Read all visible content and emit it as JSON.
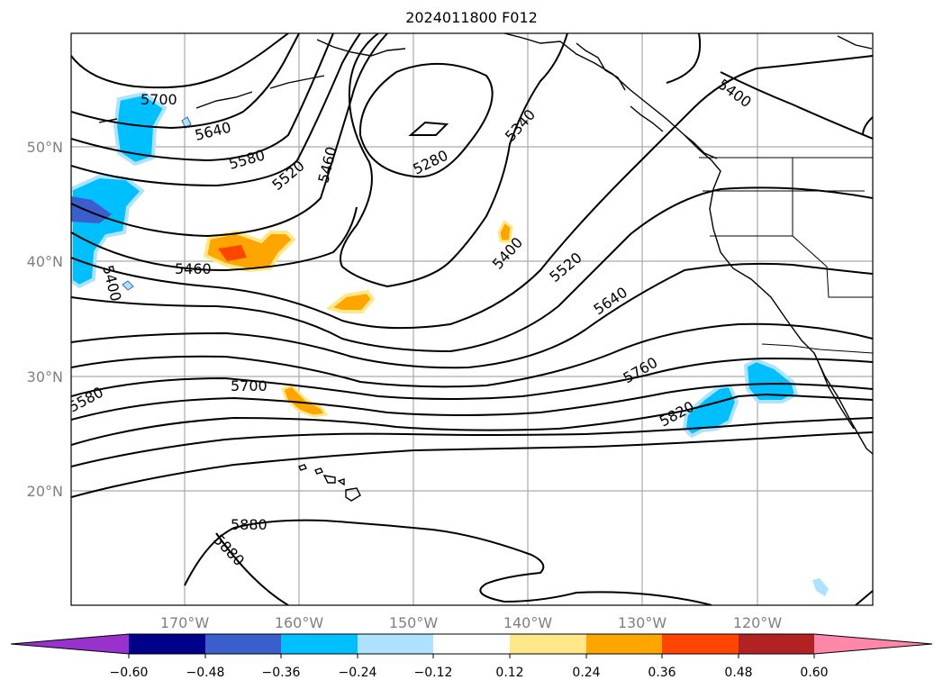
{
  "title": "2024011800 F012",
  "map": {
    "lat_labels": [
      "50°N",
      "40°N",
      "30°N",
      "20°N"
    ],
    "lon_labels": [
      "170°W",
      "160°W",
      "150°W",
      "140°W",
      "130°W",
      "120°W"
    ],
    "contour_labels": [
      "5700",
      "5640",
      "5580",
      "5520",
      "5460",
      "5280",
      "5340",
      "5400",
      "5400",
      "5460",
      "5400",
      "5520",
      "5640",
      "5760",
      "5820",
      "5700",
      "5580",
      "5880",
      "5880"
    ],
    "land_color": "#ffffff",
    "contour_color": "#000000"
  },
  "colorbar": {
    "ticks": [
      "−0.60",
      "−0.48",
      "−0.36",
      "−0.24",
      "−0.12",
      "0.12",
      "0.24",
      "0.36",
      "0.48",
      "0.60"
    ],
    "colors": [
      "#9932cc",
      "#00008b",
      "#3a5fcd",
      "#00bfff",
      "#aee3ff",
      "#ffffff",
      "#ffe88a",
      "#ffa500",
      "#ff4500",
      "#b22222",
      "#ff88aa"
    ]
  }
}
